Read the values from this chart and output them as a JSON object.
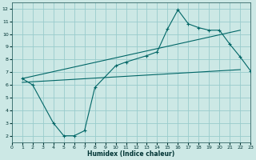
{
  "xlabel": "Humidex (Indice chaleur)",
  "bg_color": "#cce8e5",
  "grid_color": "#99cccc",
  "line_color": "#006666",
  "xlim": [
    0,
    23
  ],
  "ylim": [
    1.5,
    12.5
  ],
  "xticks": [
    0,
    1,
    2,
    3,
    4,
    5,
    6,
    7,
    8,
    9,
    10,
    11,
    12,
    13,
    14,
    15,
    16,
    17,
    18,
    19,
    20,
    21,
    22,
    23
  ],
  "yticks": [
    2,
    3,
    4,
    5,
    6,
    7,
    8,
    9,
    10,
    11,
    12
  ],
  "curve_x": [
    1,
    2,
    4,
    5,
    6,
    7,
    8,
    10,
    11,
    13,
    14,
    15,
    16,
    17,
    18,
    19,
    20,
    21,
    22,
    23
  ],
  "curve_y": [
    6.5,
    6.0,
    3.0,
    2.0,
    2.0,
    2.4,
    5.8,
    7.5,
    7.8,
    8.3,
    8.6,
    10.4,
    11.9,
    10.8,
    10.5,
    10.3,
    10.3,
    9.2,
    8.2,
    7.1
  ],
  "upper_line_x": [
    1,
    22
  ],
  "upper_line_y": [
    6.5,
    10.3
  ],
  "lower_line_x": [
    1,
    22
  ],
  "lower_line_y": [
    6.2,
    7.2
  ],
  "figsize": [
    3.2,
    2.0
  ],
  "dpi": 100
}
